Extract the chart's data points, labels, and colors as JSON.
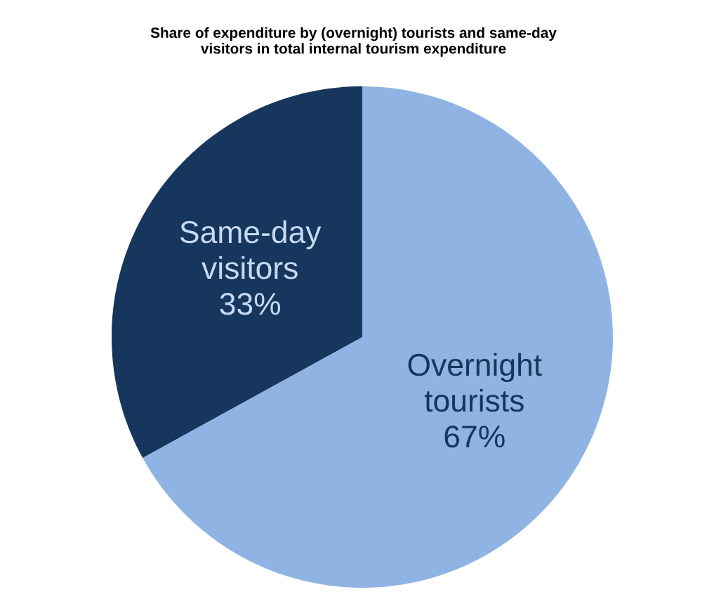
{
  "chart_data": {
    "type": "pie",
    "title": "Share of expenditure by (overnight) tourists and same-day\nvisitors in total internal tourism expenditure",
    "categories": [
      "Overnight tourists",
      "Same-day visitors"
    ],
    "values": [
      67,
      33
    ],
    "colors": [
      "#8fb4e3",
      "#17365d"
    ],
    "value_labels": [
      "67%",
      "33%"
    ],
    "legend": false
  }
}
